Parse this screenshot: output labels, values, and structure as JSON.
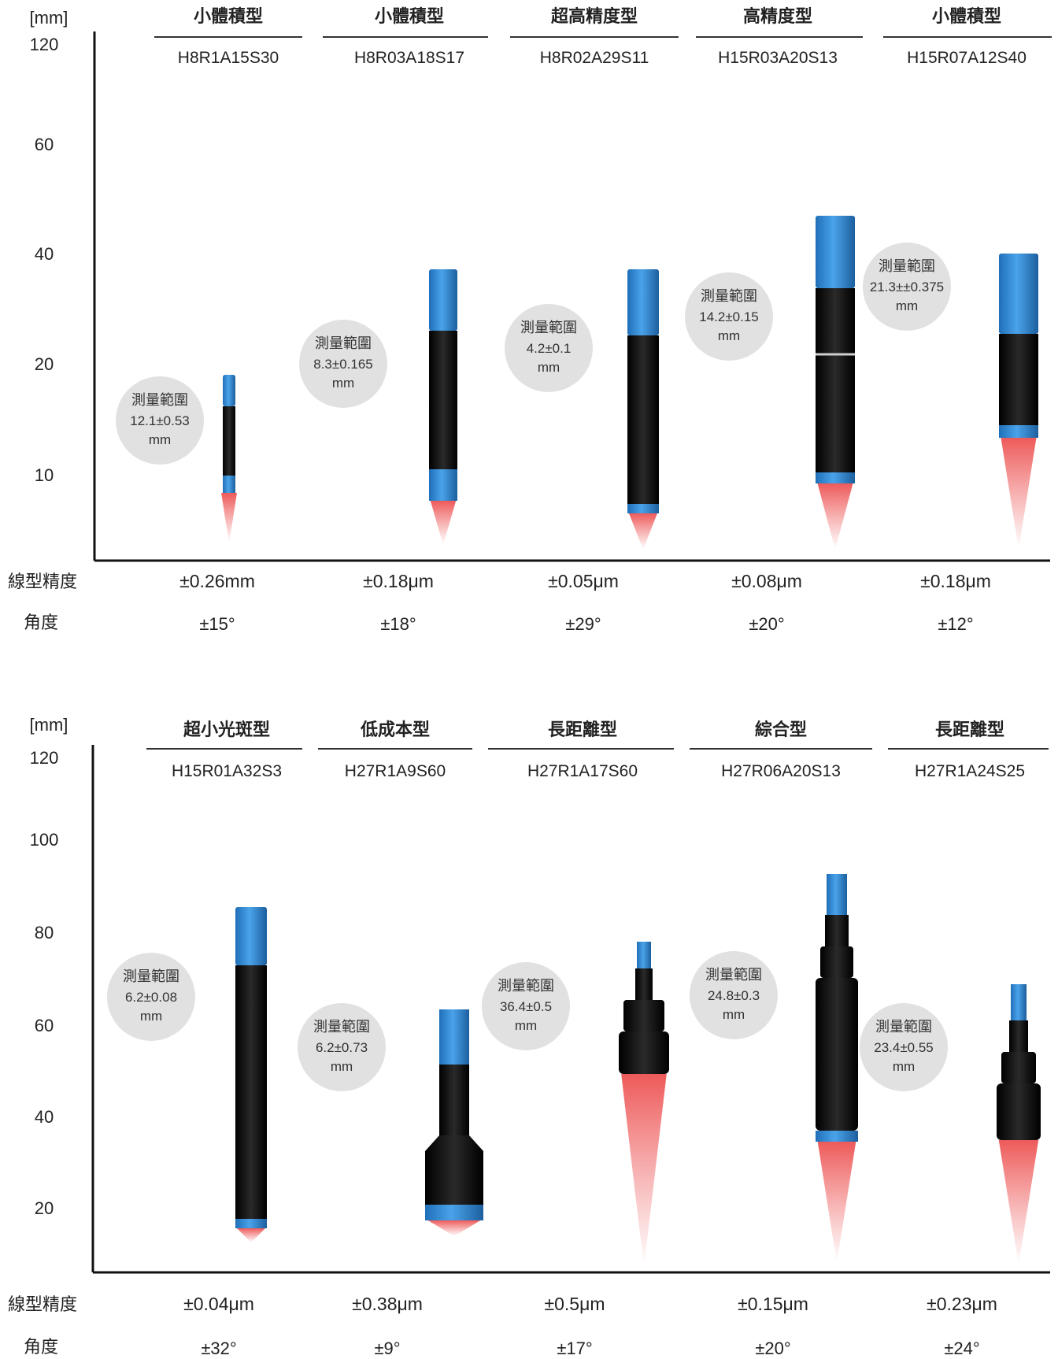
{
  "colors": {
    "probe_blue": "#3a8fd6",
    "probe_body": "#111111",
    "laser": "#f07070",
    "bubble": "#e1e1e1",
    "axis": "#111111"
  },
  "charts": [
    {
      "unit": "[mm]",
      "yticks": [
        "120",
        "60",
        "40",
        "20",
        "10"
      ],
      "row_labels": {
        "accuracy": "線型精度",
        "angle": "角度"
      },
      "probes": [
        {
          "category": "小體積型",
          "model": "H8R1A15S30",
          "range_label": "測量範圍",
          "range_value": "12.1±0.53",
          "range_unit": "mm",
          "accuracy": "±0.26mm",
          "angle": "±15°",
          "shape": "thin"
        },
        {
          "category": "小體積型",
          "model": "H8R03A18S17",
          "range_label": "測量範圍",
          "range_value": "8.3±0.165",
          "range_unit": "mm",
          "accuracy": "±0.18μm",
          "angle": "±18°",
          "shape": "pen"
        },
        {
          "category": "超高精度型",
          "model": "H8R02A29S11",
          "range_label": "測量範圍",
          "range_value": "4.2±0.1",
          "range_unit": "mm",
          "accuracy": "±0.05μm",
          "angle": "±29°",
          "shape": "pen"
        },
        {
          "category": "高精度型",
          "model": "H15R03A20S13",
          "range_label": "測量範圍",
          "range_value": "14.2±0.15",
          "range_unit": "mm",
          "accuracy": "±0.08μm",
          "angle": "±20°",
          "shape": "long"
        },
        {
          "category": "小體積型",
          "model": "H15R07A12S40",
          "range_label": "測量範圍",
          "range_value": "21.3±±0.375",
          "range_unit": "mm",
          "accuracy": "±0.18μm",
          "angle": "±12°",
          "shape": "wide"
        }
      ]
    },
    {
      "unit": "[mm]",
      "yticks": [
        "120",
        "100",
        "80",
        "60",
        "40",
        "20"
      ],
      "row_labels": {
        "accuracy": "線型精度",
        "angle": "角度"
      },
      "probes": [
        {
          "category": "超小光斑型",
          "model": "H15R01A32S3",
          "range_label": "測量範圍",
          "range_value": "6.2±0.08",
          "range_unit": "mm",
          "accuracy": "±0.04μm",
          "angle": "±32°",
          "shape": "long"
        },
        {
          "category": "低成本型",
          "model": "H27R1A9S60",
          "range_label": "測量範圍",
          "range_value": "6.2±0.73",
          "range_unit": "mm",
          "accuracy": "±0.38μm",
          "angle": "±9°",
          "shape": "bottle"
        },
        {
          "category": "長距離型",
          "model": "H27R1A17S60",
          "range_label": "測量範圍",
          "range_value": "36.4±0.5",
          "range_unit": "mm",
          "accuracy": "±0.5μm",
          "angle": "±17°",
          "shape": "stepped"
        },
        {
          "category": "綜合型",
          "model": "H27R06A20S13",
          "range_label": "測量範圍",
          "range_value": "24.8±0.3",
          "range_unit": "mm",
          "accuracy": "±0.15μm",
          "angle": "±20°",
          "shape": "stepped2"
        },
        {
          "category": "長距離型",
          "model": "H27R1A24S25",
          "range_label": "測量範圍",
          "range_value": "23.4±0.55",
          "range_unit": "mm",
          "accuracy": "±0.23μm",
          "angle": "±24°",
          "shape": "stepped3"
        }
      ]
    }
  ]
}
